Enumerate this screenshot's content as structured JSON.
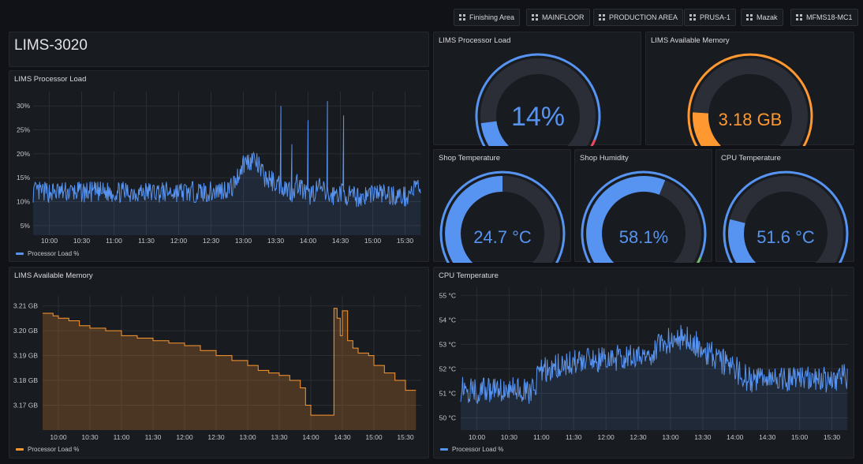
{
  "nav": {
    "links": [
      {
        "label": "Finishing Area"
      },
      {
        "label": "MAINFLOOR"
      },
      {
        "label": "PRODUCTION AREA"
      },
      {
        "label": "PRUSA-1"
      },
      {
        "label": "Mazak"
      },
      {
        "label": "MFMS18-MC1"
      }
    ]
  },
  "header_panel": {
    "title": "LIMS-3020"
  },
  "gauges": [
    {
      "title": "LIMS Processor Load",
      "value": 14,
      "display": "14%",
      "min": 0,
      "max": 100,
      "color": "#5794f2",
      "threshold_color": "#f2495c"
    },
    {
      "title": "LIMS Available Memory",
      "value": 3.18,
      "display": "3.18 GB",
      "color": "#ff9830"
    },
    {
      "title": "Shop Temperature",
      "value": 24.7,
      "display": "24.7 °C",
      "color": "#5794f2"
    },
    {
      "title": "Shop Humidity",
      "value": 58.1,
      "display": "58.1%",
      "color": "#5794f2",
      "threshold_color": "#73bf69"
    },
    {
      "title": "CPU Temperature",
      "value": 51.6,
      "display": "51.6 °C",
      "color": "#5794f2"
    }
  ],
  "chart_data": [
    {
      "type": "line",
      "title": "LIMS Processor Load",
      "x_ticks": [
        "10:00",
        "10:30",
        "11:00",
        "11:30",
        "12:00",
        "12:30",
        "13:00",
        "13:30",
        "14:00",
        "14:30",
        "15:00",
        "15:30"
      ],
      "y_ticks": [
        "5%",
        "10%",
        "15%",
        "20%",
        "25%",
        "30%"
      ],
      "ylim": [
        3,
        33
      ],
      "xlim": [
        "09:45",
        "15:45"
      ],
      "legend": "Processor Load %",
      "color": "#5794f2",
      "series": [
        {
          "name": "Processor Load %",
          "x": [
            "09:45",
            "10:00",
            "10:30",
            "11:00",
            "11:30",
            "12:00",
            "12:30",
            "12:50",
            "13:00",
            "13:10",
            "13:20",
            "13:30",
            "13:40",
            "13:45",
            "13:50",
            "14:00",
            "14:10",
            "14:20",
            "14:30",
            "14:40",
            "14:50",
            "15:00",
            "15:30",
            "15:40"
          ],
          "y": [
            12,
            12,
            12,
            12,
            12,
            12,
            12,
            13,
            18,
            19,
            15,
            14,
            13,
            12,
            14,
            11,
            13,
            11,
            12,
            11,
            11,
            12,
            11,
            13
          ]
        }
      ]
    },
    {
      "type": "line",
      "title": "LIMS Available Memory",
      "x_ticks": [
        "10:00",
        "10:30",
        "11:00",
        "11:30",
        "12:00",
        "12:30",
        "13:00",
        "13:30",
        "14:00",
        "14:30",
        "15:00",
        "15:30"
      ],
      "y_ticks": [
        "3.17 GB",
        "3.18 GB",
        "3.19 GB",
        "3.20 GB",
        "3.21 GB"
      ],
      "ylim": [
        3.16,
        3.214
      ],
      "xlim": [
        "09:45",
        "15:45"
      ],
      "legend": "Processor Load %",
      "color": "#ff9830",
      "series": [
        {
          "name": "Processor Load %",
          "x": [
            "09:45",
            "09:55",
            "10:00",
            "10:10",
            "10:20",
            "10:30",
            "10:45",
            "11:00",
            "11:15",
            "11:30",
            "11:45",
            "12:00",
            "12:15",
            "12:30",
            "12:45",
            "13:00",
            "13:10",
            "13:20",
            "13:30",
            "13:40",
            "13:50",
            "13:55",
            "14:00",
            "14:15",
            "14:20",
            "14:22",
            "14:25",
            "14:28",
            "14:30",
            "14:35",
            "14:40",
            "14:45",
            "14:55",
            "15:00",
            "15:10",
            "15:20",
            "15:30",
            "15:40"
          ],
          "y": [
            3.207,
            3.206,
            3.205,
            3.204,
            3.202,
            3.201,
            3.2,
            3.198,
            3.197,
            3.196,
            3.195,
            3.194,
            3.192,
            3.19,
            3.188,
            3.186,
            3.184,
            3.183,
            3.182,
            3.18,
            3.177,
            3.17,
            3.166,
            3.166,
            3.166,
            3.209,
            3.205,
            3.198,
            3.208,
            3.196,
            3.193,
            3.191,
            3.19,
            3.186,
            3.183,
            3.18,
            3.176,
            3.176
          ]
        }
      ]
    },
    {
      "type": "line",
      "title": "CPU Temperature",
      "x_ticks": [
        "10:00",
        "10:30",
        "11:00",
        "11:30",
        "12:00",
        "12:30",
        "13:00",
        "13:30",
        "14:00",
        "14:30",
        "15:00",
        "15:30"
      ],
      "y_ticks": [
        "50 °C",
        "51 °C",
        "52 °C",
        "53 °C",
        "54 °C",
        "55 °C"
      ],
      "ylim": [
        49.5,
        55.3
      ],
      "xlim": [
        "09:45",
        "15:45"
      ],
      "legend": "Processor Load %",
      "color": "#5794f2",
      "series": [
        {
          "name": "Processor Load %",
          "x": [
            "09:45",
            "10:00",
            "10:30",
            "10:50",
            "11:00",
            "11:20",
            "11:40",
            "12:00",
            "12:20",
            "12:40",
            "13:00",
            "13:15",
            "13:30",
            "13:45",
            "14:00",
            "14:15",
            "14:30",
            "14:45",
            "15:00",
            "15:15",
            "15:30",
            "15:40"
          ],
          "y": [
            51.2,
            51.1,
            51.2,
            51.0,
            51.9,
            52.2,
            52.3,
            52.4,
            52.5,
            52.6,
            53.2,
            53.3,
            52.8,
            52.4,
            52.0,
            51.5,
            51.8,
            51.6,
            51.7,
            51.5,
            51.6,
            51.7
          ]
        }
      ]
    }
  ]
}
